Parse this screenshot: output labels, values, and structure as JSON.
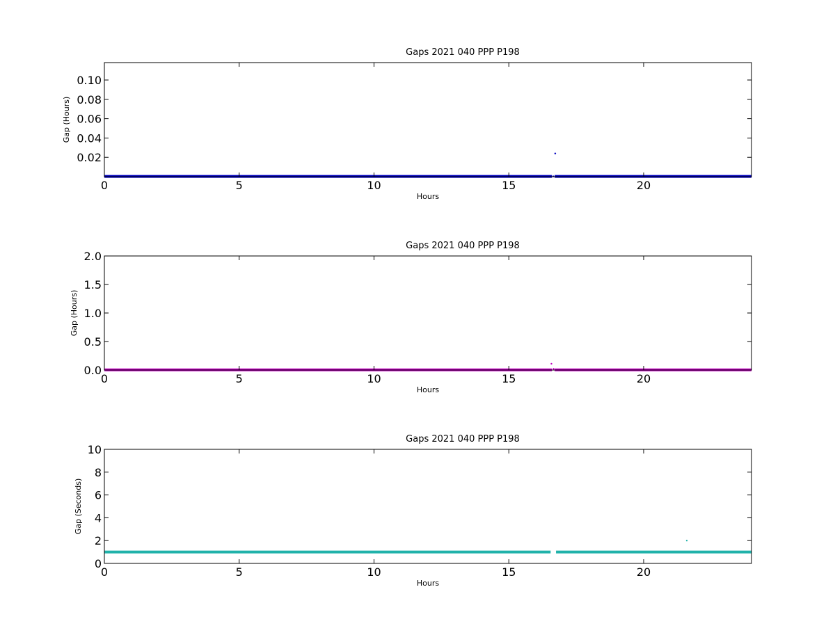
{
  "chart_data": [
    {
      "type": "scatter",
      "title": "Gaps 2021 040 PPP  P198",
      "xlabel": "Hours",
      "ylabel": "Gap (Hours)",
      "xlim": [
        0,
        24
      ],
      "ylim": [
        0,
        0.118
      ],
      "xticks": [
        "0",
        "5",
        "10",
        "15",
        "20"
      ],
      "yticks": [
        "0.02",
        "0.04",
        "0.06",
        "0.08",
        "0.10"
      ],
      "ytick_values": [
        0.02,
        0.04,
        0.06,
        0.08,
        0.1
      ],
      "xtick_values": [
        0,
        5,
        10,
        15,
        20
      ],
      "color": "#0000bf",
      "series_band": {
        "x_start": 0,
        "x_end": 24,
        "y": 0.0003,
        "gap_x": [
          16.6,
          16.7
        ]
      },
      "points": [
        {
          "x": 16.72,
          "y": 0.024
        },
        {
          "x": 16.65,
          "y": 0.0003
        }
      ]
    },
    {
      "type": "scatter",
      "title": "Gaps 2021 040 PPP  P198",
      "xlabel": "Hours",
      "ylabel": "Gap (Hours)",
      "xlim": [
        0,
        24
      ],
      "ylim": [
        0,
        2.0
      ],
      "xticks": [
        "0",
        "5",
        "10",
        "15",
        "20"
      ],
      "yticks": [
        "0.0",
        "0.5",
        "1.0",
        "1.5",
        "2.0"
      ],
      "ytick_values": [
        0,
        0.5,
        1.0,
        1.5,
        2.0
      ],
      "xtick_values": [
        0,
        5,
        10,
        15,
        20
      ],
      "color": "#bf00bf",
      "series_band": {
        "x_start": 0,
        "x_end": 24,
        "y": 0.003,
        "gap_x": [
          16.6,
          16.7
        ]
      },
      "points": [
        {
          "x": 16.58,
          "y": 0.11
        },
        {
          "x": 16.66,
          "y": 0.02
        }
      ]
    },
    {
      "type": "scatter",
      "title": "Gaps 2021 040 PPP  P198",
      "xlabel": "Hours",
      "ylabel": "Gap (Seconds)",
      "xlim": [
        0,
        24
      ],
      "ylim": [
        0,
        10
      ],
      "xticks": [
        "0",
        "5",
        "10",
        "15",
        "20"
      ],
      "yticks": [
        "0",
        "2",
        "4",
        "6",
        "8",
        "10"
      ],
      "ytick_values": [
        0,
        2,
        4,
        6,
        8,
        10
      ],
      "xtick_values": [
        0,
        5,
        10,
        15,
        20
      ],
      "color": "#20b2aa",
      "series_band": {
        "x_start": 0,
        "x_end": 24,
        "y": 1.0,
        "gap_x": [
          16.55,
          16.75
        ]
      },
      "points": [
        {
          "x": 21.6,
          "y": 2.0
        }
      ]
    }
  ]
}
